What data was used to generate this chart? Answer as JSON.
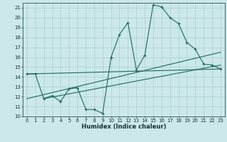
{
  "xlabel": "Humidex (Indice chaleur)",
  "background_color": "#cce8e8",
  "grid_color": "#aacfcf",
  "line_color": "#1a6b5a",
  "xlim": [
    -0.5,
    23.5
  ],
  "ylim": [
    10,
    21.5
  ],
  "yticks": [
    10,
    11,
    12,
    13,
    14,
    15,
    16,
    17,
    18,
    19,
    20,
    21
  ],
  "xticks": [
    0,
    1,
    2,
    3,
    4,
    5,
    6,
    7,
    8,
    9,
    10,
    11,
    12,
    13,
    14,
    15,
    16,
    17,
    18,
    19,
    20,
    21,
    22,
    23
  ],
  "curve_x": [
    0,
    1,
    2,
    3,
    4,
    5,
    6,
    7,
    8,
    9,
    10,
    11,
    12,
    13,
    14,
    15,
    16,
    17,
    18,
    19,
    20,
    21,
    22,
    23
  ],
  "curve_y": [
    14.3,
    14.3,
    11.8,
    12.1,
    11.5,
    12.8,
    12.9,
    10.7,
    10.7,
    10.3,
    16.0,
    18.3,
    19.5,
    14.7,
    16.2,
    21.3,
    21.1,
    20.0,
    19.4,
    17.5,
    16.8,
    15.3,
    15.2,
    14.8
  ],
  "trend1_x": [
    0,
    23
  ],
  "trend1_y": [
    14.3,
    14.8
  ],
  "trend2_x": [
    0,
    23
  ],
  "trend2_y": [
    11.8,
    16.5
  ],
  "trend3_x": [
    2,
    23
  ],
  "trend3_y": [
    11.8,
    15.2
  ]
}
